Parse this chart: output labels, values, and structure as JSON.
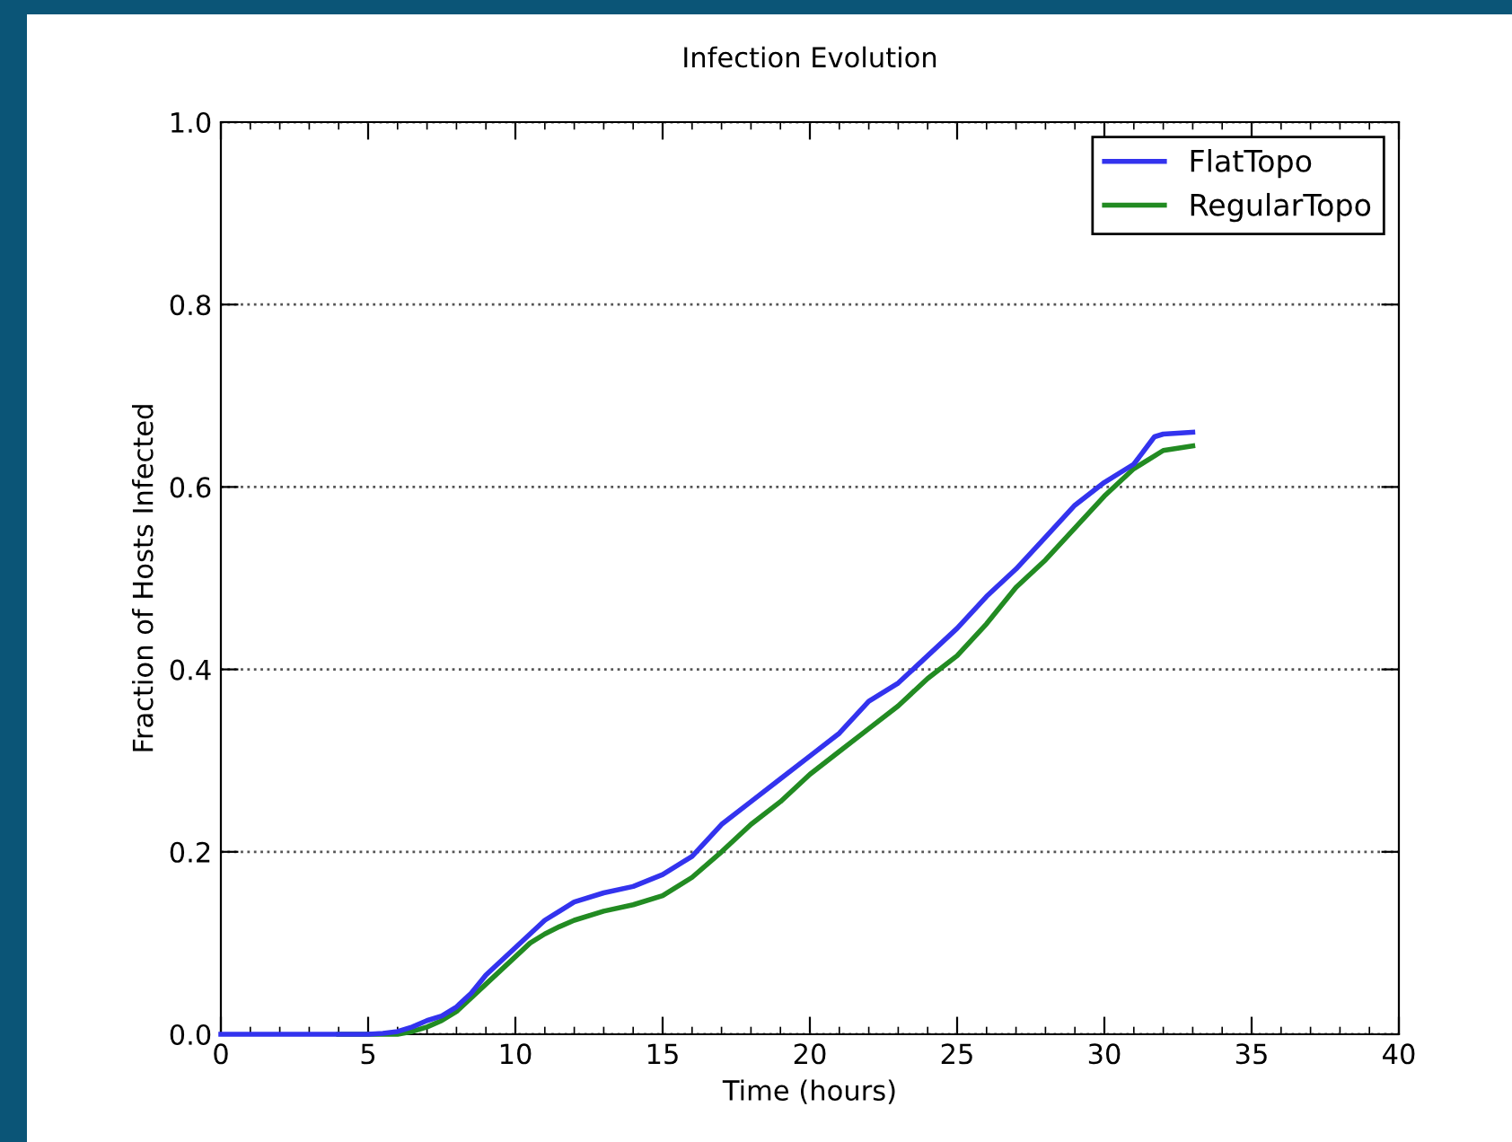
{
  "chart_data": {
    "type": "line",
    "title": "Infection Evolution",
    "xlabel": "Time (hours)",
    "ylabel": "Fraction of Hosts Infected",
    "xlim": [
      0,
      40
    ],
    "xticks": [
      0,
      5,
      10,
      15,
      20,
      25,
      30,
      35,
      40
    ],
    "ylim": [
      0,
      1.0
    ],
    "yticks": [
      {
        "value": 0,
        "label": "0.0"
      },
      0.2,
      0.4,
      0.6,
      0.8,
      {
        "value": 1,
        "label": "1.0"
      }
    ],
    "grid": "y",
    "legend": "top right",
    "line_style": "solid",
    "series": [
      {
        "name": "FlatTopo",
        "color": "#3333ee",
        "x": [
          0,
          1,
          2,
          3,
          4,
          5,
          5.5,
          6,
          6.5,
          7,
          7.5,
          8,
          8.5,
          9,
          9.5,
          10,
          10.5,
          11,
          11.5,
          12,
          13,
          14,
          15,
          16,
          17,
          18,
          19,
          20,
          21,
          22,
          23,
          24,
          25,
          26,
          27,
          28,
          29,
          30,
          31,
          31.7,
          32,
          33
        ],
        "values": [
          0,
          0,
          0,
          0,
          0,
          0,
          0.001,
          0.003,
          0.008,
          0.015,
          0.02,
          0.03,
          0.045,
          0.065,
          0.08,
          0.095,
          0.11,
          0.125,
          0.135,
          0.145,
          0.155,
          0.162,
          0.175,
          0.195,
          0.23,
          0.255,
          0.28,
          0.305,
          0.33,
          0.365,
          0.385,
          0.415,
          0.445,
          0.48,
          0.51,
          0.545,
          0.58,
          0.605,
          0.625,
          0.655,
          0.658,
          0.66
        ]
      },
      {
        "name": "RegularTopo",
        "color": "#228b22",
        "x": [
          4,
          5,
          6,
          6.5,
          7,
          7.5,
          8,
          8.5,
          9,
          9.5,
          10,
          10.5,
          11,
          11.5,
          12,
          13,
          14,
          15,
          16,
          17,
          18,
          19,
          20,
          21,
          22,
          23,
          24,
          25,
          26,
          27,
          28,
          29,
          30,
          31,
          32,
          33
        ],
        "values": [
          0,
          0,
          0,
          0.003,
          0.008,
          0.015,
          0.025,
          0.04,
          0.055,
          0.07,
          0.085,
          0.1,
          0.11,
          0.118,
          0.125,
          0.135,
          0.142,
          0.152,
          0.172,
          0.2,
          0.23,
          0.255,
          0.285,
          0.31,
          0.335,
          0.36,
          0.39,
          0.415,
          0.45,
          0.49,
          0.52,
          0.555,
          0.59,
          0.62,
          0.64,
          0.645
        ]
      }
    ]
  }
}
